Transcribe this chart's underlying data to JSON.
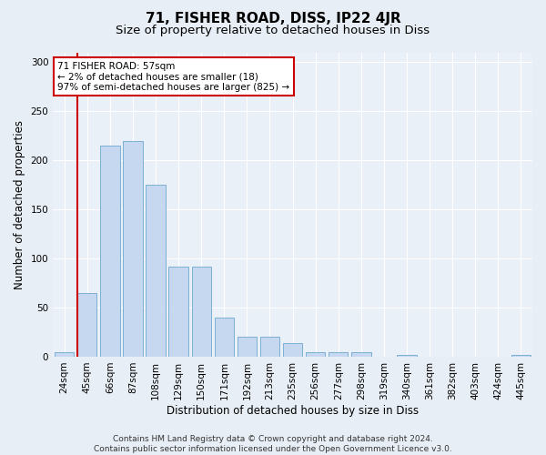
{
  "title": "71, FISHER ROAD, DISS, IP22 4JR",
  "subtitle": "Size of property relative to detached houses in Diss",
  "xlabel": "Distribution of detached houses by size in Diss",
  "ylabel": "Number of detached properties",
  "categories": [
    "24sqm",
    "45sqm",
    "66sqm",
    "87sqm",
    "108sqm",
    "129sqm",
    "150sqm",
    "171sqm",
    "192sqm",
    "213sqm",
    "235sqm",
    "256sqm",
    "277sqm",
    "298sqm",
    "319sqm",
    "340sqm",
    "361sqm",
    "382sqm",
    "403sqm",
    "424sqm",
    "445sqm"
  ],
  "values": [
    5,
    65,
    215,
    220,
    175,
    92,
    92,
    40,
    20,
    20,
    14,
    5,
    5,
    5,
    0,
    2,
    0,
    0,
    0,
    0,
    2
  ],
  "bar_color": "#c5d8ef",
  "bar_edge_color": "#7aafd4",
  "vline_x_index": 1,
  "vline_color": "#cc0000",
  "annotation_line1": "71 FISHER ROAD: 57sqm",
  "annotation_line2": "← 2% of detached houses are smaller (18)",
  "annotation_line3": "97% of semi-detached houses are larger (825) →",
  "annotation_box_color": "#ffffff",
  "annotation_box_edge": "#cc0000",
  "ylim": [
    0,
    310
  ],
  "yticks": [
    0,
    50,
    100,
    150,
    200,
    250,
    300
  ],
  "bg_color": "#e8eef5",
  "plot_bg_color": "#eaf0f8",
  "footer": "Contains HM Land Registry data © Crown copyright and database right 2024.\nContains public sector information licensed under the Open Government Licence v3.0.",
  "title_fontsize": 11,
  "subtitle_fontsize": 9.5,
  "ylabel_fontsize": 8.5,
  "xlabel_fontsize": 8.5,
  "tick_fontsize": 7.5,
  "annotation_fontsize": 7.5,
  "footer_fontsize": 6.5
}
